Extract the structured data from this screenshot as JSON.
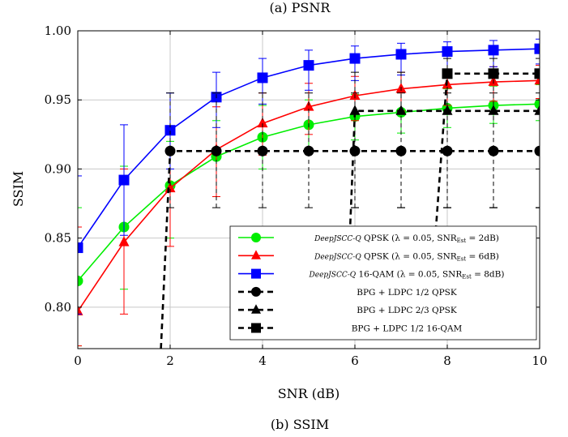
{
  "captions": {
    "top": "(a) PSNR",
    "bottom": "(b) SSIM"
  },
  "chart_data": {
    "type": "line",
    "title": "",
    "xlabel": "SNR (dB)",
    "ylabel": "SSIM",
    "xlim": [
      0,
      10
    ],
    "ylim": [
      0.77,
      1.0
    ],
    "xticks": [
      0,
      2,
      4,
      6,
      8,
      10
    ],
    "yticks": [
      0.8,
      0.85,
      0.9,
      0.95,
      1.0
    ],
    "xtick_labels": [
      "0",
      "2",
      "4",
      "6",
      "8",
      "10"
    ],
    "ytick_labels": [
      "0.80",
      "0.85",
      "0.90",
      "0.95",
      "1.00"
    ],
    "grid": true,
    "legend_position": "bottom-right",
    "series": [
      {
        "name": "DeepJSCC-Q QPSK (λ = 0.05, SNR_Est = 2dB)",
        "legend": {
          "italic": "DeepJSCC-Q",
          "rest": " QPSK (λ = 0.05, SNR",
          "sub": "Est",
          "tail": " = 2dB)"
        },
        "color": "#00ee00",
        "marker": "circle",
        "dash": false,
        "x": [
          0,
          1,
          2,
          3,
          4,
          5,
          6,
          7,
          8,
          9,
          10
        ],
        "y": [
          0.819,
          0.858,
          0.888,
          0.909,
          0.923,
          0.932,
          0.938,
          0.941,
          0.944,
          0.946,
          0.947
        ],
        "err_low": [
          0.772,
          0.813,
          0.85,
          0.88,
          0.9,
          0.912,
          0.921,
          0.926,
          0.93,
          0.933,
          0.935
        ],
        "err_high": [
          0.872,
          0.902,
          0.92,
          0.935,
          0.946,
          0.95,
          0.954,
          0.956,
          0.958,
          0.96,
          0.961
        ]
      },
      {
        "name": "DeepJSCC-Q QPSK (λ = 0.05, SNR_Est = 6dB)",
        "legend": {
          "italic": "DeepJSCC-Q",
          "rest": " QPSK (λ = 0.05, SNR",
          "sub": "Est",
          "tail": " = 6dB)"
        },
        "color": "#ff0000",
        "marker": "triangle",
        "dash": false,
        "x": [
          0,
          1,
          2,
          3,
          4,
          5,
          6,
          7,
          8,
          9,
          10
        ],
        "y": [
          0.797,
          0.847,
          0.886,
          0.914,
          0.933,
          0.945,
          0.953,
          0.958,
          0.961,
          0.963,
          0.964
        ],
        "err_low": [
          0.772,
          0.795,
          0.844,
          0.88,
          0.91,
          0.925,
          0.935,
          0.942,
          0.946,
          0.949,
          0.951
        ],
        "err_high": [
          0.858,
          0.9,
          0.927,
          0.945,
          0.955,
          0.962,
          0.967,
          0.97,
          0.972,
          0.974,
          0.975
        ]
      },
      {
        "name": "DeepJSCC-Q 16-QAM (λ = 0.05, SNR_Est = 8dB)",
        "legend": {
          "italic": "DeepJSCC-Q",
          "rest": " 16-QAM (λ = 0.05, SNR",
          "sub": "Est",
          "tail": " = 8dB)"
        },
        "color": "#0000ff",
        "marker": "square",
        "dash": false,
        "x": [
          0,
          1,
          2,
          3,
          4,
          5,
          6,
          7,
          8,
          9,
          10
        ],
        "y": [
          0.843,
          0.892,
          0.928,
          0.952,
          0.966,
          0.975,
          0.98,
          0.983,
          0.985,
          0.986,
          0.987
        ],
        "err_low": [
          0.795,
          0.852,
          0.9,
          0.93,
          0.947,
          0.957,
          0.964,
          0.968,
          0.972,
          0.974,
          0.976
        ],
        "err_high": [
          0.895,
          0.932,
          0.955,
          0.97,
          0.98,
          0.986,
          0.989,
          0.991,
          0.992,
          0.993,
          0.994
        ]
      },
      {
        "name": "BPG + LDPC 1/2 QPSK",
        "legend": {
          "italic": "",
          "rest": "BPG + LDPC 1/2 QPSK",
          "sub": "",
          "tail": ""
        },
        "color": "#000000",
        "marker": "circle",
        "dash": true,
        "x": [
          1.8,
          2,
          3,
          4,
          5,
          6,
          7,
          8,
          9,
          10
        ],
        "y": [
          0.77,
          0.913,
          0.913,
          0.913,
          0.913,
          0.913,
          0.913,
          0.913,
          0.913,
          0.913
        ],
        "markers_at": [
          2,
          3,
          4,
          5,
          6,
          7,
          8,
          9,
          10
        ],
        "err_low": [
          0.872,
          0.872,
          0.872,
          0.872,
          0.872,
          0.872,
          0.872,
          0.872,
          0.872
        ],
        "err_high": [
          0.955,
          0.955,
          0.955,
          0.955,
          0.955,
          0.955,
          0.955,
          0.955,
          0.955
        ]
      },
      {
        "name": "BPG + LDPC 2/3 QPSK",
        "legend": {
          "italic": "",
          "rest": "BPG + LDPC 2/3 QPSK",
          "sub": "",
          "tail": ""
        },
        "color": "#000000",
        "marker": "triangle",
        "dash": true,
        "x": [
          5.9,
          6,
          7,
          8,
          9,
          10
        ],
        "y": [
          0.86,
          0.942,
          0.942,
          0.942,
          0.942,
          0.942
        ],
        "markers_at": [
          6,
          7,
          8,
          9,
          10
        ],
        "err_low": [
          0.872,
          0.872,
          0.872,
          0.872,
          0.872
        ],
        "err_high": [
          0.97,
          0.97,
          0.97,
          0.97,
          0.97
        ]
      },
      {
        "name": "BPG + LDPC 1/2 16-QAM",
        "legend": {
          "italic": "",
          "rest": "BPG + LDPC 1/2 16-QAM",
          "sub": "",
          "tail": ""
        },
        "color": "#000000",
        "marker": "square",
        "dash": true,
        "x": [
          7.75,
          8,
          9,
          10
        ],
        "y": [
          0.855,
          0.969,
          0.969,
          0.969
        ],
        "markers_at": [
          8,
          9,
          10
        ],
        "err_low": [
          0.872,
          0.872,
          0.872
        ],
        "err_high": [
          0.98,
          0.98,
          0.98
        ]
      }
    ]
  }
}
